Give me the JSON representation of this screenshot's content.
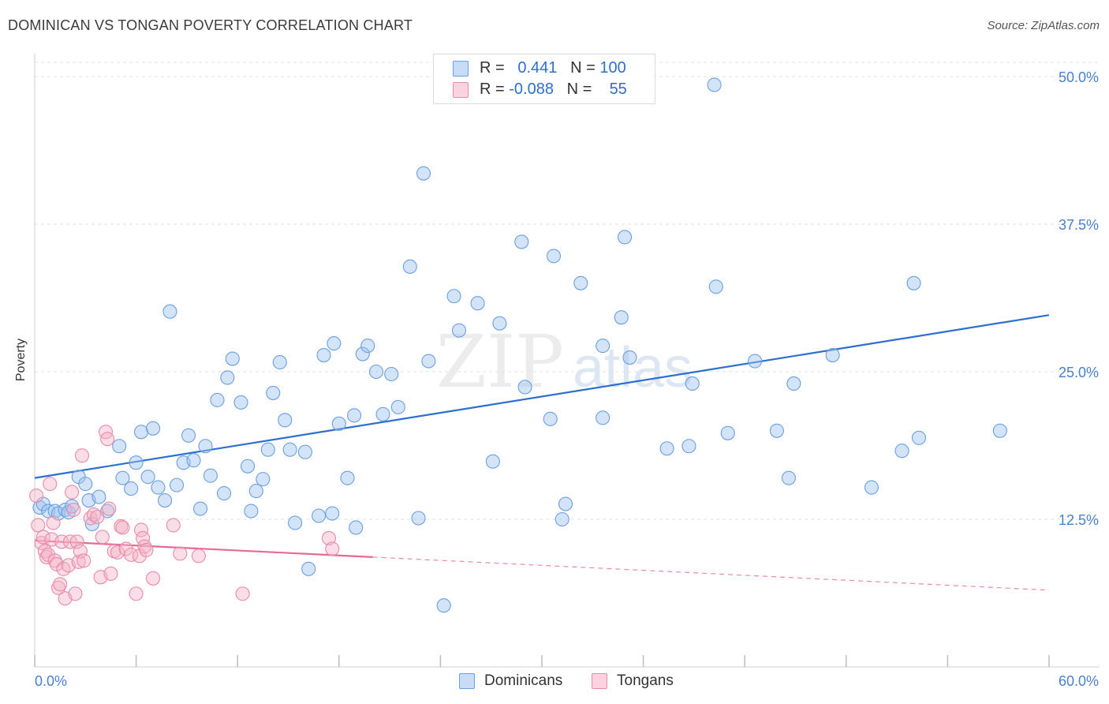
{
  "header": {
    "title": "DOMINICAN VS TONGAN POVERTY CORRELATION CHART",
    "source": "Source: ZipAtlas.com"
  },
  "legend": {
    "rows": [
      {
        "r_label": "R =",
        "r_value": "0.441",
        "n_label": "N =",
        "n_value": "100",
        "color": "#9dc3f2"
      },
      {
        "r_label": "R =",
        "r_value": "-0.088",
        "n_label": "N =",
        "n_value": "55",
        "color": "#f5b3c8"
      }
    ]
  },
  "bottom_legend": {
    "items": [
      {
        "label": "Dominicans",
        "color": "#9dc3f2"
      },
      {
        "label": "Tongans",
        "color": "#f5b3c8"
      }
    ]
  },
  "chart_data": {
    "type": "scatter",
    "title": "DOMINICAN VS TONGAN POVERTY CORRELATION CHART",
    "xlabel": "",
    "ylabel": "Poverty",
    "xlim": [
      0,
      60
    ],
    "ylim": [
      0,
      52
    ],
    "x_tick_labels": [
      {
        "value": 0,
        "label": "0.0%"
      },
      {
        "value": 60,
        "label": "60.0%"
      }
    ],
    "y_tick_labels": [
      {
        "value": 12.5,
        "label": "12.5%"
      },
      {
        "value": 25.0,
        "label": "25.0%"
      },
      {
        "value": 37.5,
        "label": "37.5%"
      },
      {
        "value": 50.0,
        "label": "50.0%"
      }
    ],
    "x_minor_ticks": [
      0,
      6,
      12,
      18,
      24,
      30,
      36,
      42,
      48,
      54,
      60
    ],
    "grid": "horizontal dashed",
    "legend_position": "top-center",
    "series": [
      {
        "name": "Dominicans",
        "color": "#9dc3f2",
        "stroke": "#6a9fe0",
        "trend": {
          "x": [
            0,
            60
          ],
          "y": [
            16.0,
            29.8
          ],
          "color": "#2c6fce"
        },
        "points": [
          [
            0.3,
            13.5
          ],
          [
            0.5,
            13.8
          ],
          [
            0.8,
            13.2
          ],
          [
            1.2,
            13.2
          ],
          [
            1.4,
            13.0
          ],
          [
            1.8,
            13.3
          ],
          [
            2.0,
            13.1
          ],
          [
            2.2,
            13.6
          ],
          [
            2.6,
            16.1
          ],
          [
            3.0,
            15.5
          ],
          [
            3.2,
            14.1
          ],
          [
            3.4,
            12.1
          ],
          [
            3.8,
            14.4
          ],
          [
            4.3,
            13.2
          ],
          [
            5.0,
            18.7
          ],
          [
            5.2,
            16.0
          ],
          [
            5.7,
            15.1
          ],
          [
            6.0,
            17.3
          ],
          [
            6.3,
            19.9
          ],
          [
            6.7,
            16.1
          ],
          [
            7.0,
            20.2
          ],
          [
            7.3,
            15.2
          ],
          [
            7.7,
            14.1
          ],
          [
            8.0,
            30.1
          ],
          [
            8.4,
            15.4
          ],
          [
            8.8,
            17.3
          ],
          [
            9.1,
            19.6
          ],
          [
            9.4,
            17.5
          ],
          [
            9.8,
            13.4
          ],
          [
            10.1,
            18.7
          ],
          [
            10.4,
            16.2
          ],
          [
            10.8,
            22.6
          ],
          [
            11.2,
            14.7
          ],
          [
            11.4,
            24.5
          ],
          [
            11.7,
            26.1
          ],
          [
            12.2,
            22.4
          ],
          [
            12.6,
            17.0
          ],
          [
            12.8,
            13.2
          ],
          [
            13.1,
            14.9
          ],
          [
            13.5,
            15.9
          ],
          [
            13.8,
            18.4
          ],
          [
            14.1,
            23.2
          ],
          [
            14.5,
            25.8
          ],
          [
            14.8,
            20.9
          ],
          [
            15.1,
            18.4
          ],
          [
            15.4,
            12.2
          ],
          [
            16.0,
            18.2
          ],
          [
            16.2,
            8.3
          ],
          [
            16.8,
            12.8
          ],
          [
            17.1,
            26.4
          ],
          [
            17.6,
            13.0
          ],
          [
            17.7,
            27.4
          ],
          [
            18.0,
            20.6
          ],
          [
            18.5,
            16.0
          ],
          [
            18.9,
            21.3
          ],
          [
            19.0,
            11.8
          ],
          [
            19.4,
            26.5
          ],
          [
            19.7,
            27.2
          ],
          [
            20.2,
            25.0
          ],
          [
            20.6,
            21.4
          ],
          [
            21.1,
            24.8
          ],
          [
            21.5,
            22.0
          ],
          [
            22.2,
            33.9
          ],
          [
            22.7,
            12.6
          ],
          [
            23.0,
            41.8
          ],
          [
            23.3,
            25.9
          ],
          [
            24.2,
            5.2
          ],
          [
            24.8,
            31.4
          ],
          [
            25.1,
            28.5
          ],
          [
            26.2,
            30.8
          ],
          [
            27.1,
            17.4
          ],
          [
            27.5,
            29.1
          ],
          [
            28.8,
            36.0
          ],
          [
            29.0,
            23.7
          ],
          [
            30.5,
            21.0
          ],
          [
            30.7,
            34.8
          ],
          [
            31.2,
            12.5
          ],
          [
            31.4,
            13.8
          ],
          [
            32.3,
            32.5
          ],
          [
            33.6,
            27.2
          ],
          [
            33.6,
            21.1
          ],
          [
            34.7,
            29.6
          ],
          [
            34.9,
            36.4
          ],
          [
            35.2,
            26.2
          ],
          [
            37.4,
            18.5
          ],
          [
            38.7,
            18.7
          ],
          [
            38.9,
            24.0
          ],
          [
            40.2,
            49.3
          ],
          [
            40.3,
            32.2
          ],
          [
            41.0,
            19.8
          ],
          [
            42.6,
            25.9
          ],
          [
            43.9,
            20.0
          ],
          [
            44.6,
            16.0
          ],
          [
            44.9,
            24.0
          ],
          [
            47.2,
            26.4
          ],
          [
            49.5,
            15.2
          ],
          [
            51.3,
            18.3
          ],
          [
            52.0,
            32.5
          ],
          [
            52.3,
            19.4
          ],
          [
            57.1,
            20.0
          ]
        ]
      },
      {
        "name": "Tongans",
        "color": "#f5b3c8",
        "stroke": "#e88aa9",
        "trend": {
          "x": [
            0,
            20
          ],
          "y": [
            10.7,
            9.3
          ],
          "dashed_to": {
            "x": 60,
            "y": 6.5
          },
          "color": "#e36b95"
        },
        "points": [
          [
            0.1,
            14.5
          ],
          [
            0.2,
            12.0
          ],
          [
            0.4,
            10.5
          ],
          [
            0.5,
            11.0
          ],
          [
            0.6,
            9.8
          ],
          [
            0.7,
            9.3
          ],
          [
            0.8,
            9.5
          ],
          [
            0.9,
            15.5
          ],
          [
            1.0,
            10.8
          ],
          [
            1.1,
            12.2
          ],
          [
            1.2,
            9.0
          ],
          [
            1.3,
            8.7
          ],
          [
            1.4,
            6.7
          ],
          [
            1.5,
            7.0
          ],
          [
            1.6,
            10.6
          ],
          [
            1.7,
            8.3
          ],
          [
            1.8,
            5.8
          ],
          [
            2.0,
            8.6
          ],
          [
            2.1,
            10.6
          ],
          [
            2.2,
            14.8
          ],
          [
            2.3,
            13.3
          ],
          [
            2.4,
            6.2
          ],
          [
            2.5,
            10.6
          ],
          [
            2.6,
            8.9
          ],
          [
            2.7,
            9.8
          ],
          [
            2.8,
            17.9
          ],
          [
            2.9,
            9.0
          ],
          [
            3.3,
            12.6
          ],
          [
            3.5,
            12.9
          ],
          [
            3.7,
            12.7
          ],
          [
            3.9,
            7.6
          ],
          [
            4.0,
            11.0
          ],
          [
            4.2,
            19.9
          ],
          [
            4.3,
            19.3
          ],
          [
            4.4,
            13.4
          ],
          [
            4.5,
            7.9
          ],
          [
            4.7,
            9.8
          ],
          [
            4.9,
            9.7
          ],
          [
            5.1,
            11.9
          ],
          [
            5.2,
            11.8
          ],
          [
            5.4,
            10.0
          ],
          [
            5.7,
            9.5
          ],
          [
            6.0,
            6.2
          ],
          [
            6.2,
            9.4
          ],
          [
            6.3,
            11.6
          ],
          [
            6.4,
            10.9
          ],
          [
            6.5,
            10.2
          ],
          [
            6.6,
            9.9
          ],
          [
            7.0,
            7.5
          ],
          [
            8.2,
            12.0
          ],
          [
            8.6,
            9.6
          ],
          [
            9.7,
            9.4
          ],
          [
            12.3,
            6.2
          ],
          [
            17.4,
            10.9
          ],
          [
            17.6,
            10.0
          ]
        ]
      }
    ]
  }
}
